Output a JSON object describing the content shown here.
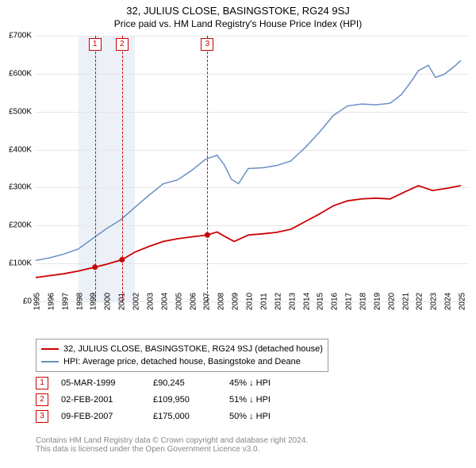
{
  "title": "32, JULIUS CLOSE, BASINGSTOKE, RG24 9SJ",
  "subtitle": "Price paid vs. HM Land Registry's House Price Index (HPI)",
  "chart": {
    "type": "line",
    "background_color": "#ffffff",
    "grid_color": "#e6e6e6",
    "shade_color": "rgba(200,215,235,0.35)",
    "shade_ranges": [
      [
        1998,
        2002
      ]
    ],
    "x_min": 1995,
    "x_max": 2025.5,
    "x_ticks": [
      1995,
      1996,
      1997,
      1998,
      1999,
      2000,
      2001,
      2002,
      2003,
      2004,
      2005,
      2006,
      2007,
      2008,
      2009,
      2010,
      2011,
      2012,
      2013,
      2014,
      2015,
      2016,
      2017,
      2018,
      2019,
      2020,
      2021,
      2022,
      2023,
      2024,
      2025
    ],
    "y_min": 0,
    "y_max": 700000,
    "y_ticks": [
      {
        "v": 0,
        "label": "£0"
      },
      {
        "v": 100000,
        "label": "£100K"
      },
      {
        "v": 200000,
        "label": "£200K"
      },
      {
        "v": 300000,
        "label": "£300K"
      },
      {
        "v": 400000,
        "label": "£400K"
      },
      {
        "v": 500000,
        "label": "£500K"
      },
      {
        "v": 600000,
        "label": "£600K"
      },
      {
        "v": 700000,
        "label": "£700K"
      }
    ],
    "series": [
      {
        "name": "property",
        "color": "#cc0000",
        "width": 1.8,
        "data": [
          [
            1995,
            63000
          ],
          [
            1996,
            68000
          ],
          [
            1997,
            73000
          ],
          [
            1998,
            80000
          ],
          [
            1999.18,
            90245
          ],
          [
            2000,
            98000
          ],
          [
            2001.09,
            109950
          ],
          [
            2002,
            130000
          ],
          [
            2003,
            145000
          ],
          [
            2004,
            158000
          ],
          [
            2005,
            165000
          ],
          [
            2006,
            170000
          ],
          [
            2007.11,
            175000
          ],
          [
            2007.8,
            183000
          ],
          [
            2008.3,
            172000
          ],
          [
            2009,
            158000
          ],
          [
            2010,
            175000
          ],
          [
            2011,
            178000
          ],
          [
            2012,
            182000
          ],
          [
            2013,
            190000
          ],
          [
            2014,
            210000
          ],
          [
            2015,
            230000
          ],
          [
            2016,
            252000
          ],
          [
            2017,
            265000
          ],
          [
            2018,
            270000
          ],
          [
            2019,
            272000
          ],
          [
            2020,
            270000
          ],
          [
            2021,
            288000
          ],
          [
            2022,
            305000
          ],
          [
            2023,
            292000
          ],
          [
            2024,
            298000
          ],
          [
            2025,
            305000
          ]
        ]
      },
      {
        "name": "hpi",
        "color": "#6a8fc5",
        "width": 1.5,
        "data": [
          [
            1995,
            108000
          ],
          [
            1996,
            115000
          ],
          [
            1997,
            125000
          ],
          [
            1998,
            138000
          ],
          [
            1999,
            165000
          ],
          [
            2000,
            192000
          ],
          [
            2001,
            215000
          ],
          [
            2002,
            248000
          ],
          [
            2003,
            280000
          ],
          [
            2004,
            310000
          ],
          [
            2005,
            320000
          ],
          [
            2006,
            345000
          ],
          [
            2007,
            375000
          ],
          [
            2007.8,
            385000
          ],
          [
            2008.3,
            360000
          ],
          [
            2008.8,
            322000
          ],
          [
            2009.3,
            310000
          ],
          [
            2010,
            350000
          ],
          [
            2011,
            352000
          ],
          [
            2012,
            358000
          ],
          [
            2013,
            370000
          ],
          [
            2014,
            405000
          ],
          [
            2015,
            445000
          ],
          [
            2016,
            490000
          ],
          [
            2017,
            515000
          ],
          [
            2018,
            520000
          ],
          [
            2019,
            518000
          ],
          [
            2020,
            522000
          ],
          [
            2020.8,
            545000
          ],
          [
            2021.5,
            580000
          ],
          [
            2022,
            608000
          ],
          [
            2022.7,
            622000
          ],
          [
            2023.2,
            590000
          ],
          [
            2023.8,
            598000
          ],
          [
            2024.5,
            618000
          ],
          [
            2025,
            635000
          ]
        ]
      }
    ],
    "markers": [
      {
        "num": "1",
        "x": 1999.18,
        "color": "#cc0000"
      },
      {
        "num": "2",
        "x": 2001.09,
        "color": "#cc0000"
      },
      {
        "num": "3",
        "x": 2007.11,
        "color": "#cc0000"
      }
    ],
    "sale_points": [
      {
        "x": 1999.18,
        "y": 90245
      },
      {
        "x": 2001.09,
        "y": 109950
      },
      {
        "x": 2007.11,
        "y": 175000
      }
    ]
  },
  "legend": {
    "items": [
      {
        "color": "#cc0000",
        "label": "32, JULIUS CLOSE, BASINGSTOKE, RG24 9SJ (detached house)"
      },
      {
        "color": "#6a8fc5",
        "label": "HPI: Average price, detached house, Basingstoke and Deane"
      }
    ]
  },
  "sales": [
    {
      "num": "1",
      "date": "05-MAR-1999",
      "price": "£90,245",
      "delta": "45% ↓ HPI"
    },
    {
      "num": "2",
      "date": "02-FEB-2001",
      "price": "£109,950",
      "delta": "51% ↓ HPI"
    },
    {
      "num": "3",
      "date": "09-FEB-2007",
      "price": "£175,000",
      "delta": "50% ↓ HPI"
    }
  ],
  "footer": {
    "line1": "Contains HM Land Registry data © Crown copyright and database right 2024.",
    "line2": "This data is licensed under the Open Government Licence v3.0."
  }
}
